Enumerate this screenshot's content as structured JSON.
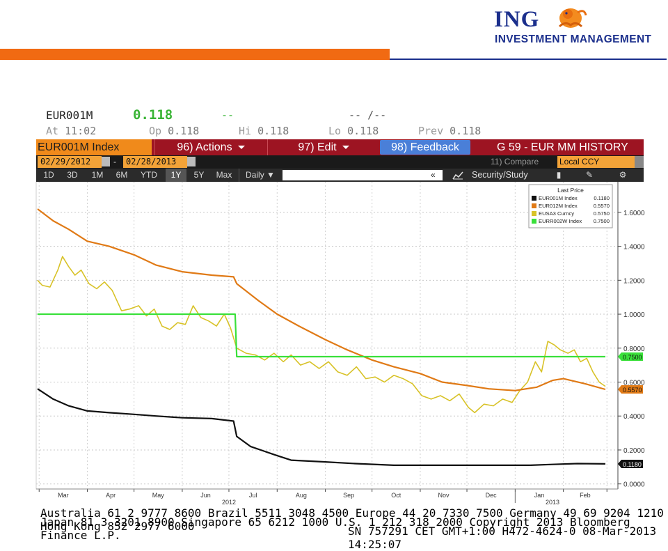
{
  "brand": {
    "name": "ING",
    "subtitle": "INVESTMENT MANAGEMENT"
  },
  "quote": {
    "ticker": "EUR001M",
    "last": "0.118",
    "change": "--",
    "bid_ask": "-- /--",
    "time_label": "At",
    "time": "11:02",
    "open_label": "Op",
    "open": "0.118",
    "high_label": "Hi",
    "high": "0.118",
    "low_label": "Lo",
    "low": "0.118",
    "prev_label": "Prev",
    "prev": "0.118"
  },
  "menu": {
    "security": "EUR001M Index",
    "actions": "96) Actions",
    "edit": "97) Edit",
    "feedback": "98) Feedback",
    "title": "G 59 - EUR MM HISTORY"
  },
  "dates": {
    "start": "02/29/2012",
    "separator": "-",
    "end": "02/28/2013",
    "compare": "11) Compare",
    "currency": "Local CCY"
  },
  "periods": [
    "1D",
    "3D",
    "1M",
    "6M",
    "YTD",
    "1Y",
    "5Y",
    "Max"
  ],
  "active_period": "1Y",
  "frequency": "Daily ▼",
  "collapse_glyph": "«",
  "security_study": "Security/Study",
  "icons": {
    "calendar": "calendar-icon",
    "chart_type": "line-chart-icon",
    "bookmark": "bookmark-icon",
    "annotate": "annotate-icon",
    "settings": "gear-icon"
  },
  "colors": {
    "EUR001M": "#111111",
    "EUR012M": "#e07a16",
    "EUSA3": "#d8c227",
    "EURR002W": "#39e03a",
    "orange_brand": "#f16a12",
    "ing_blue": "#1b2f8c",
    "menu_red": "#9d1422"
  },
  "chart_data": {
    "type": "line",
    "legend_title": "Last Price",
    "legend_position": "top-right",
    "x_months": [
      "Mar",
      "Apr",
      "May",
      "Jun",
      "Jul",
      "Aug",
      "Sep",
      "Oct",
      "Nov",
      "Dec",
      "Jan",
      "Feb"
    ],
    "year_labels": [
      "2012",
      "2013"
    ],
    "y_ticks": [
      "1.6000",
      "1.4000",
      "1.2000",
      "1.0000",
      "0.8000",
      "0.6000",
      "0.4000",
      "0.2000",
      "0.0000"
    ],
    "ylim": [
      -0.03,
      1.78
    ],
    "grid": true,
    "series": [
      {
        "name": "EUR001M Index",
        "legend_value": "0.1180",
        "last_tag": "0.1180",
        "points": [
          [
            "2012-02-29",
            0.56
          ],
          [
            "2012-03-10",
            0.5
          ],
          [
            "2012-03-20",
            0.46
          ],
          [
            "2012-04-01",
            0.43
          ],
          [
            "2012-04-15",
            0.42
          ],
          [
            "2012-05-01",
            0.41
          ],
          [
            "2012-05-15",
            0.4
          ],
          [
            "2012-06-01",
            0.39
          ],
          [
            "2012-06-20",
            0.385
          ],
          [
            "2012-07-04",
            0.37
          ],
          [
            "2012-07-06",
            0.28
          ],
          [
            "2012-07-15",
            0.22
          ],
          [
            "2012-07-31",
            0.17
          ],
          [
            "2012-08-10",
            0.14
          ],
          [
            "2012-08-31",
            0.13
          ],
          [
            "2012-09-20",
            0.12
          ],
          [
            "2012-10-15",
            0.11
          ],
          [
            "2012-11-15",
            0.11
          ],
          [
            "2012-12-15",
            0.11
          ],
          [
            "2013-01-10",
            0.11
          ],
          [
            "2013-01-25",
            0.115
          ],
          [
            "2013-02-10",
            0.12
          ],
          [
            "2013-02-28",
            0.118
          ]
        ]
      },
      {
        "name": "EUR012M Index",
        "legend_value": "0.5570",
        "last_tag": "0.5570",
        "points": [
          [
            "2012-02-29",
            1.62
          ],
          [
            "2012-03-10",
            1.55
          ],
          [
            "2012-03-20",
            1.5
          ],
          [
            "2012-04-01",
            1.43
          ],
          [
            "2012-04-15",
            1.4
          ],
          [
            "2012-05-01",
            1.35
          ],
          [
            "2012-05-15",
            1.29
          ],
          [
            "2012-06-01",
            1.25
          ],
          [
            "2012-06-20",
            1.23
          ],
          [
            "2012-07-04",
            1.22
          ],
          [
            "2012-07-06",
            1.18
          ],
          [
            "2012-07-20",
            1.08
          ],
          [
            "2012-08-01",
            1.0
          ],
          [
            "2012-08-15",
            0.93
          ],
          [
            "2012-09-01",
            0.85
          ],
          [
            "2012-09-15",
            0.79
          ],
          [
            "2012-10-01",
            0.73
          ],
          [
            "2012-10-15",
            0.69
          ],
          [
            "2012-11-01",
            0.65
          ],
          [
            "2012-11-15",
            0.6
          ],
          [
            "2012-12-01",
            0.58
          ],
          [
            "2012-12-15",
            0.56
          ],
          [
            "2013-01-01",
            0.55
          ],
          [
            "2013-01-15",
            0.57
          ],
          [
            "2013-01-25",
            0.61
          ],
          [
            "2013-02-01",
            0.62
          ],
          [
            "2013-02-15",
            0.59
          ],
          [
            "2013-02-28",
            0.557
          ]
        ]
      },
      {
        "name": "EUSA3 Curncy",
        "legend_value": "0.5750",
        "points": [
          [
            "2012-02-29",
            1.2
          ],
          [
            "2012-03-03",
            1.17
          ],
          [
            "2012-03-08",
            1.16
          ],
          [
            "2012-03-13",
            1.26
          ],
          [
            "2012-03-16",
            1.34
          ],
          [
            "2012-03-20",
            1.28
          ],
          [
            "2012-03-24",
            1.23
          ],
          [
            "2012-03-28",
            1.26
          ],
          [
            "2012-04-02",
            1.18
          ],
          [
            "2012-04-07",
            1.15
          ],
          [
            "2012-04-12",
            1.19
          ],
          [
            "2012-04-17",
            1.14
          ],
          [
            "2012-04-23",
            1.02
          ],
          [
            "2012-04-28",
            1.03
          ],
          [
            "2012-05-04",
            1.05
          ],
          [
            "2012-05-09",
            0.99
          ],
          [
            "2012-05-14",
            1.03
          ],
          [
            "2012-05-19",
            0.93
          ],
          [
            "2012-05-24",
            0.91
          ],
          [
            "2012-05-29",
            0.95
          ],
          [
            "2012-06-03",
            0.94
          ],
          [
            "2012-06-08",
            1.05
          ],
          [
            "2012-06-13",
            0.98
          ],
          [
            "2012-06-18",
            0.96
          ],
          [
            "2012-06-23",
            0.93
          ],
          [
            "2012-06-28",
            1.0
          ],
          [
            "2012-07-02",
            0.92
          ],
          [
            "2012-07-06",
            0.8
          ],
          [
            "2012-07-12",
            0.77
          ],
          [
            "2012-07-18",
            0.76
          ],
          [
            "2012-07-24",
            0.73
          ],
          [
            "2012-07-30",
            0.77
          ],
          [
            "2012-08-05",
            0.72
          ],
          [
            "2012-08-10",
            0.76
          ],
          [
            "2012-08-16",
            0.7
          ],
          [
            "2012-08-22",
            0.72
          ],
          [
            "2012-08-28",
            0.68
          ],
          [
            "2012-09-03",
            0.72
          ],
          [
            "2012-09-09",
            0.66
          ],
          [
            "2012-09-15",
            0.64
          ],
          [
            "2012-09-21",
            0.69
          ],
          [
            "2012-09-27",
            0.62
          ],
          [
            "2012-10-03",
            0.63
          ],
          [
            "2012-10-09",
            0.6
          ],
          [
            "2012-10-15",
            0.64
          ],
          [
            "2012-10-21",
            0.62
          ],
          [
            "2012-10-27",
            0.59
          ],
          [
            "2012-11-02",
            0.52
          ],
          [
            "2012-11-08",
            0.5
          ],
          [
            "2012-11-14",
            0.52
          ],
          [
            "2012-11-20",
            0.49
          ],
          [
            "2012-11-26",
            0.53
          ],
          [
            "2012-12-02",
            0.45
          ],
          [
            "2012-12-06",
            0.42
          ],
          [
            "2012-12-12",
            0.47
          ],
          [
            "2012-12-18",
            0.46
          ],
          [
            "2012-12-24",
            0.5
          ],
          [
            "2012-12-30",
            0.48
          ],
          [
            "2013-01-04",
            0.55
          ],
          [
            "2013-01-09",
            0.6
          ],
          [
            "2013-01-14",
            0.72
          ],
          [
            "2013-01-18",
            0.66
          ],
          [
            "2013-01-22",
            0.84
          ],
          [
            "2013-01-26",
            0.82
          ],
          [
            "2013-01-30",
            0.79
          ],
          [
            "2013-02-04",
            0.77
          ],
          [
            "2013-02-08",
            0.79
          ],
          [
            "2013-02-12",
            0.72
          ],
          [
            "2013-02-16",
            0.74
          ],
          [
            "2013-02-20",
            0.66
          ],
          [
            "2013-02-24",
            0.6
          ],
          [
            "2013-02-28",
            0.575
          ]
        ]
      },
      {
        "name": "EURR002W Index",
        "legend_value": "0.7500",
        "last_tag": "0.7500",
        "points": [
          [
            "2012-02-29",
            1.0
          ],
          [
            "2012-07-05",
            1.0
          ],
          [
            "2012-07-06",
            0.75
          ],
          [
            "2013-02-28",
            0.75
          ]
        ]
      }
    ]
  },
  "footer": {
    "line1": "Australia 61 2 9777 8600 Brazil 5511 3048 4500 Europe 44 20 7330 7500 Germany 49 69 9204 1210 Hong Kong 852 2977 6000",
    "line2": "Japan 81 3 3201 8900       Singapore 65 6212 1000     U.S. 1 212 318 2000         Copyright 2013 Bloomberg Finance L.P.",
    "line3": "SN 757291 CET  GMT+1:00 H472-4624-0 08-Mar-2013 14:25:07"
  }
}
